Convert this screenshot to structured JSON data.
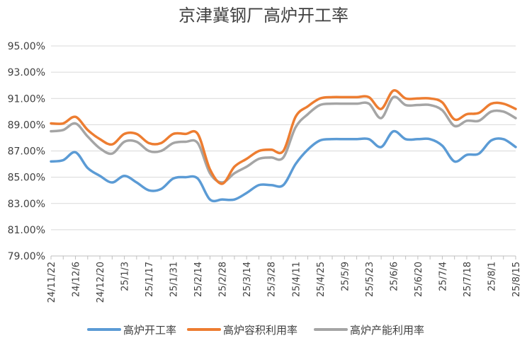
{
  "chart_data": {
    "type": "line",
    "title": "京津冀钢厂高炉开工率",
    "ylim": [
      79,
      95
    ],
    "yticks": [
      "79.00%",
      "81.00%",
      "83.00%",
      "85.00%",
      "87.00%",
      "89.00%",
      "91.00%",
      "93.00%",
      "95.00%"
    ],
    "ytick_values": [
      79,
      81,
      83,
      85,
      87,
      89,
      91,
      93,
      95
    ],
    "x": [
      "24/11/22",
      "24/11/29",
      "24/12/6",
      "24/12/13",
      "24/12/20",
      "24/12/27",
      "25/1/3",
      "25/1/10",
      "25/1/17",
      "25/1/24",
      "25/1/31",
      "25/2/7",
      "25/2/14",
      "25/2/21",
      "25/2/28",
      "25/3/7",
      "25/3/14",
      "25/3/21",
      "25/3/28",
      "25/4/4",
      "25/4/11",
      "25/4/18",
      "25/4/25",
      "25/5/2",
      "25/5/9",
      "25/5/16",
      "25/5/23",
      "25/5/30",
      "25/6/6",
      "25/6/13",
      "25/6/20",
      "25/6/27",
      "25/7/4",
      "25/7/11",
      "25/7/18",
      "25/7/25",
      "25/8/1",
      "25/8/8",
      "25/8/15"
    ],
    "xtick_labels": [
      "24/11/22",
      "24/12/6",
      "24/12/20",
      "25/1/3",
      "25/1/17",
      "25/1/31",
      "25/2/14",
      "25/2/28",
      "25/3/14",
      "25/3/28",
      "25/4/11",
      "25/4/25",
      "25/5/9",
      "25/5/23",
      "25/6/6",
      "25/6/20",
      "25/7/4",
      "25/7/18",
      "25/8/1",
      "25/8/15"
    ],
    "series": [
      {
        "name": "高炉开工率",
        "color": "#5B9BD5",
        "values": [
          86.2,
          86.3,
          86.9,
          85.7,
          85.1,
          84.6,
          85.1,
          84.6,
          84.0,
          84.1,
          84.9,
          85.0,
          84.9,
          83.3,
          83.3,
          83.3,
          83.8,
          84.4,
          84.4,
          84.4,
          86.0,
          87.1,
          87.8,
          87.9,
          87.9,
          87.9,
          87.9,
          87.3,
          88.5,
          87.9,
          87.9,
          87.9,
          87.4,
          86.2,
          86.7,
          86.8,
          87.8,
          87.9,
          87.3
        ]
      },
      {
        "name": "高炉容积利用率",
        "color": "#ED7D31",
        "values": [
          89.1,
          89.1,
          89.6,
          88.6,
          87.9,
          87.5,
          88.3,
          88.3,
          87.6,
          87.6,
          88.3,
          88.3,
          88.3,
          85.6,
          84.5,
          85.8,
          86.4,
          87.0,
          87.1,
          87.0,
          89.6,
          90.4,
          91.0,
          91.1,
          91.1,
          91.1,
          91.1,
          90.2,
          91.6,
          91.0,
          91.0,
          91.0,
          90.7,
          89.4,
          89.8,
          89.9,
          90.6,
          90.6,
          90.2
        ]
      },
      {
        "name": "高炉产能利用率",
        "color": "#A5A5A5",
        "values": [
          88.5,
          88.6,
          89.1,
          88.1,
          87.2,
          86.8,
          87.7,
          87.7,
          87.0,
          87.0,
          87.6,
          87.7,
          87.6,
          85.3,
          84.6,
          85.3,
          85.8,
          86.4,
          86.5,
          86.5,
          88.8,
          89.8,
          90.5,
          90.6,
          90.6,
          90.6,
          90.6,
          89.5,
          91.1,
          90.5,
          90.5,
          90.5,
          90.1,
          88.9,
          89.3,
          89.3,
          90.0,
          90.0,
          89.5
        ]
      }
    ],
    "legend_position": "bottom",
    "grid": true
  }
}
